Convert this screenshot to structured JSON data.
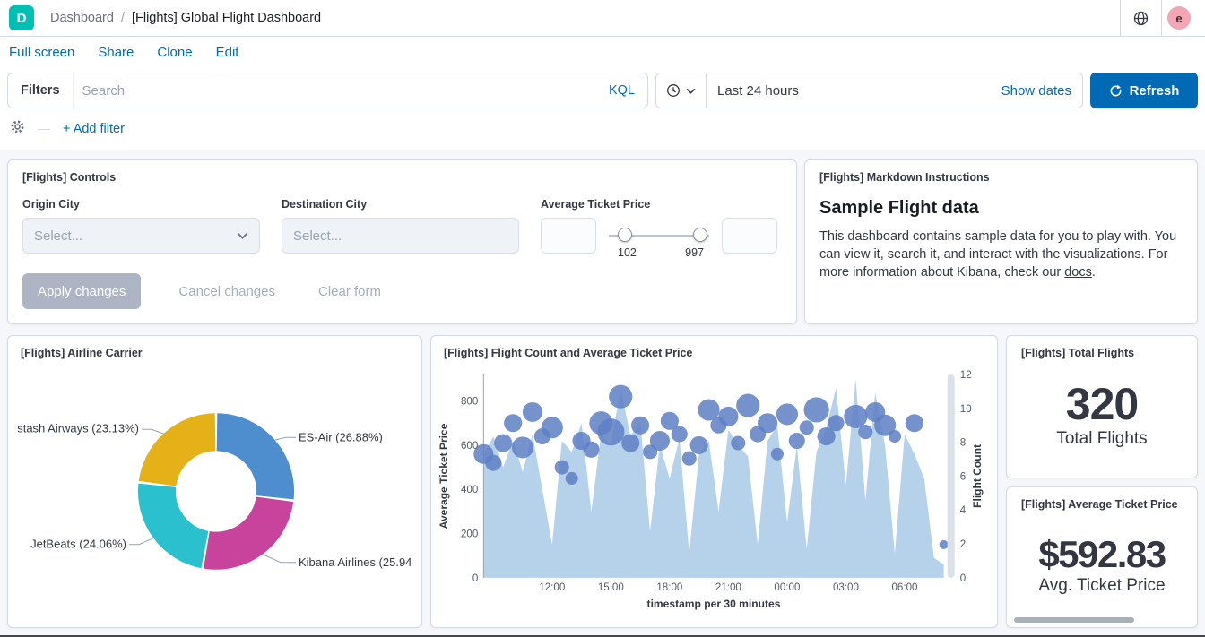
{
  "header": {
    "logo_letter": "D",
    "breadcrumb_root": "Dashboard",
    "breadcrumb_sep": "/",
    "breadcrumb_current": "[Flights] Global Flight Dashboard",
    "avatar_letter": "e"
  },
  "menu": {
    "items": [
      {
        "label": "Full screen"
      },
      {
        "label": "Share"
      },
      {
        "label": "Clone"
      },
      {
        "label": "Edit"
      }
    ]
  },
  "filter_bar": {
    "filters_label": "Filters",
    "search_placeholder": "Search",
    "kql_label": "KQL",
    "time_value": "Last 24 hours",
    "show_dates_label": "Show dates",
    "refresh_label": "Refresh",
    "add_filter_label": "+ Add filter"
  },
  "icons": {
    "elastic-logo": "D",
    "globe-icon": "globe",
    "gear-icon": "gear",
    "clock-icon": "clock",
    "chevron-down-icon": "chevron-down",
    "refresh-icon": "refresh-arrow"
  },
  "colors": {
    "accent_blue": "#006BB4",
    "logo_teal": "#00BFB3",
    "panel_border": "#D3DAE6",
    "page_bg": "#F5F7FA",
    "text_dark": "#343741",
    "placeholder": "#98A2B3"
  },
  "controls_panel": {
    "title": "[Flights] Controls",
    "origin_label": "Origin City",
    "origin_placeholder": "Select...",
    "dest_label": "Destination City",
    "dest_placeholder": "Select...",
    "price_label": "Average Ticket Price",
    "price_min": "102",
    "price_max": "997",
    "apply_label": "Apply changes",
    "cancel_label": "Cancel changes",
    "clear_label": "Clear form"
  },
  "markdown_panel": {
    "title": "[Flights] Markdown Instructions",
    "heading": "Sample Flight data",
    "body_before_link": "This dashboard contains sample data for you to play with. You can view it, search it, and interact with the visualizations. For more information about Kibana, check our ",
    "link_label": "docs",
    "body_after_link": "."
  },
  "airline_panel": {
    "title": "[Flights] Airline Carrier",
    "chart_data": {
      "type": "pie",
      "donut": true,
      "slices": [
        {
          "label": "ES-Air",
          "pct": 26.88,
          "display": "ES-Air (26.88%)",
          "color": "#4E8ECF"
        },
        {
          "label": "Kibana Airlines",
          "pct": 25.94,
          "display": "Kibana Airlines (25.94",
          "color": "#C8449C"
        },
        {
          "label": "JetBeats",
          "pct": 24.06,
          "display": "JetBeats (24.06%)",
          "color": "#2BC0CE"
        },
        {
          "label": "Logstash Airways",
          "pct": 23.13,
          "display": "stash Airways (23.13%)",
          "color": "#E5B118"
        }
      ]
    }
  },
  "combo_panel": {
    "title": "[Flights] Flight Count and Average Ticket Price",
    "chart_data": {
      "type": "area+bubble",
      "xlabel": "timestamp per 30 minutes",
      "n_buckets": 48,
      "left_axis": {
        "label": "Average Ticket Price",
        "ticks": [
          0,
          200,
          400,
          600,
          800
        ],
        "max": 920
      },
      "right_axis": {
        "label": "Flight Count",
        "ticks": [
          0,
          2,
          4,
          6,
          8,
          10,
          12
        ],
        "max": 12
      },
      "x_ticks": [
        {
          "label": "12:00",
          "i": 7
        },
        {
          "label": "15:00",
          "i": 13
        },
        {
          "label": "18:00",
          "i": 19
        },
        {
          "label": "21:00",
          "i": 25
        },
        {
          "label": "00:00",
          "i": 31
        },
        {
          "label": "03:00",
          "i": 37
        },
        {
          "label": "06:00",
          "i": 43
        }
      ],
      "area_color": "#AECDE9",
      "bubble_color": "#5E7FC4",
      "area_series": {
        "name": "Average Ticket Price",
        "values": [
          560,
          640,
          500,
          620,
          480,
          650,
          400,
          150,
          620,
          570,
          700,
          300,
          650,
          600,
          860,
          640,
          710,
          210,
          600,
          450,
          630,
          110,
          560,
          620,
          300,
          670,
          600,
          550,
          150,
          620,
          690,
          250,
          600,
          130,
          570,
          680,
          860,
          420,
          900,
          350,
          840,
          600,
          110,
          650,
          560,
          450,
          90,
          60
        ]
      },
      "bubble_series": {
        "name": "Flight Count",
        "points": [
          [
            0,
            560,
            7
          ],
          [
            1,
            520,
            5
          ],
          [
            2,
            610,
            6
          ],
          [
            3,
            700,
            6
          ],
          [
            4,
            590,
            8
          ],
          [
            5,
            750,
            7
          ],
          [
            6,
            640,
            5
          ],
          [
            7,
            680,
            8
          ],
          [
            8,
            500,
            4
          ],
          [
            9,
            450,
            3
          ],
          [
            10,
            620,
            6
          ],
          [
            11,
            580,
            5
          ],
          [
            12,
            700,
            9
          ],
          [
            13,
            660,
            11
          ],
          [
            14,
            820,
            9
          ],
          [
            15,
            610,
            6
          ],
          [
            16,
            690,
            6
          ],
          [
            17,
            570,
            4
          ],
          [
            18,
            620,
            7
          ],
          [
            19,
            710,
            6
          ],
          [
            20,
            650,
            5
          ],
          [
            21,
            540,
            4
          ],
          [
            22,
            600,
            6
          ],
          [
            23,
            760,
            8
          ],
          [
            24,
            690,
            5
          ],
          [
            25,
            730,
            7
          ],
          [
            26,
            610,
            4
          ],
          [
            27,
            780,
            9
          ],
          [
            28,
            650,
            5
          ],
          [
            29,
            700,
            7
          ],
          [
            30,
            560,
            3
          ],
          [
            31,
            740,
            8
          ],
          [
            32,
            620,
            5
          ],
          [
            33,
            680,
            4
          ],
          [
            34,
            760,
            10
          ],
          [
            35,
            640,
            6
          ],
          [
            36,
            700,
            5
          ],
          [
            38,
            730,
            9
          ],
          [
            39,
            660,
            4
          ],
          [
            40,
            750,
            7
          ],
          [
            41,
            690,
            8
          ],
          [
            42,
            640,
            3
          ],
          [
            44,
            700,
            6
          ],
          [
            47,
            150,
            1
          ]
        ]
      }
    }
  },
  "total_flights_panel": {
    "title": "[Flights] Total Flights",
    "value": "320",
    "label": "Total Flights"
  },
  "avg_price_panel": {
    "title": "[Flights] Average Ticket Price",
    "value": "$592.83",
    "label": "Avg. Ticket Price"
  }
}
